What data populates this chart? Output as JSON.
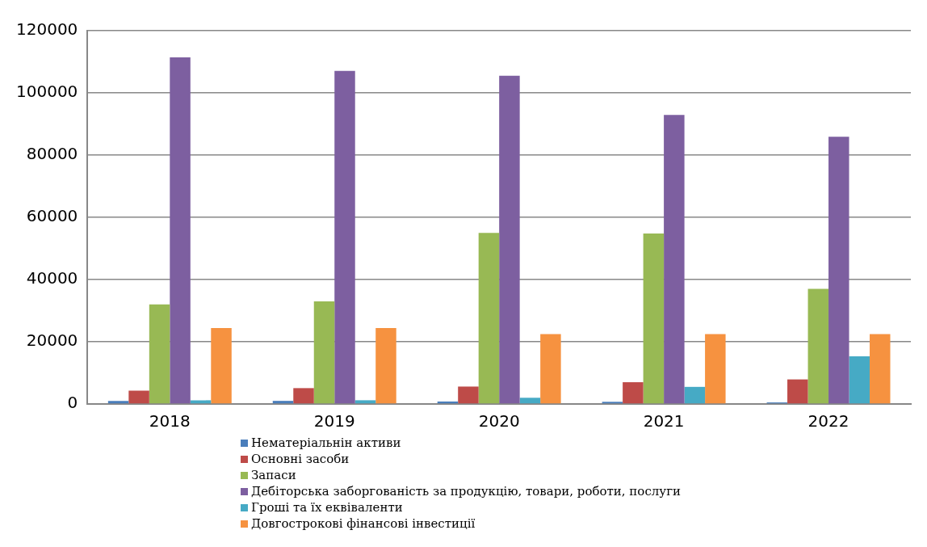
{
  "chart_data": {
    "type": "bar",
    "categories": [
      "2018",
      "2019",
      "2020",
      "2021",
      "2022"
    ],
    "series": [
      {
        "name": "Нематеріальнін активи",
        "color": "#4a7ebb",
        "values": [
          1000,
          1000,
          800,
          700,
          500
        ]
      },
      {
        "name": "Основні засоби",
        "color": "#be4b48",
        "values": [
          4300,
          5100,
          5600,
          7000,
          7900
        ]
      },
      {
        "name": "Запаси",
        "color": "#98b954",
        "values": [
          32000,
          33000,
          55000,
          54800,
          37000
        ]
      },
      {
        "name": "Дебіторська заборгованість за продукцію, товари, роботи, послуги",
        "color": "#7d5fa0",
        "values": [
          111400,
          107100,
          105500,
          92900,
          85900
        ]
      },
      {
        "name": "Гроші та їх еквіваленти",
        "color": "#46aac5",
        "values": [
          1200,
          1200,
          2000,
          5500,
          15300
        ]
      },
      {
        "name": "Довгострокові фінансові інвестиції",
        "color": "#f69240",
        "values": [
          24400,
          24400,
          22500,
          22500,
          22500
        ]
      }
    ],
    "ylim": [
      0,
      120000
    ],
    "yticks": [
      0,
      20000,
      40000,
      60000,
      80000,
      100000,
      120000
    ],
    "grid": "y",
    "legend": "bottom"
  }
}
